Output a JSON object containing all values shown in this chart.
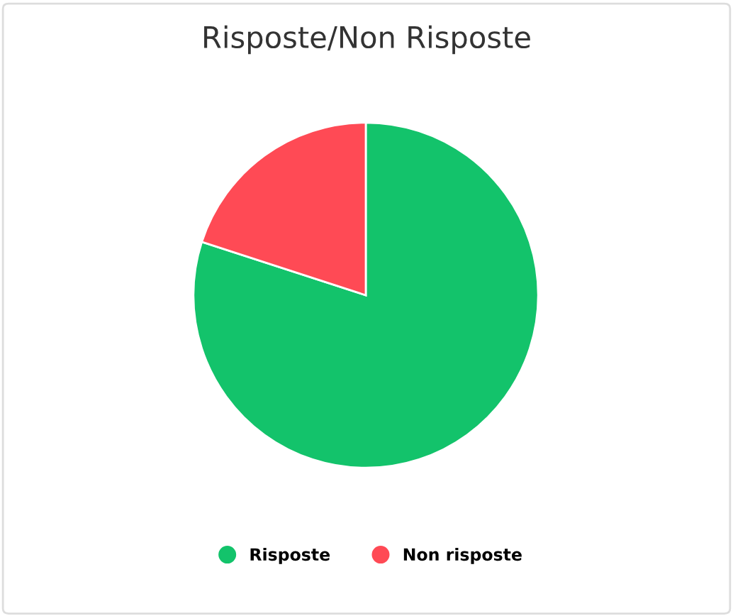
{
  "chart_data": {
    "type": "pie",
    "title": "Risposte/Non Risposte",
    "categories": [
      "Risposte",
      "Non risposte"
    ],
    "values": [
      80,
      20
    ],
    "colors": [
      "#13c36b",
      "#ff4a55"
    ],
    "legend": "bottom"
  }
}
